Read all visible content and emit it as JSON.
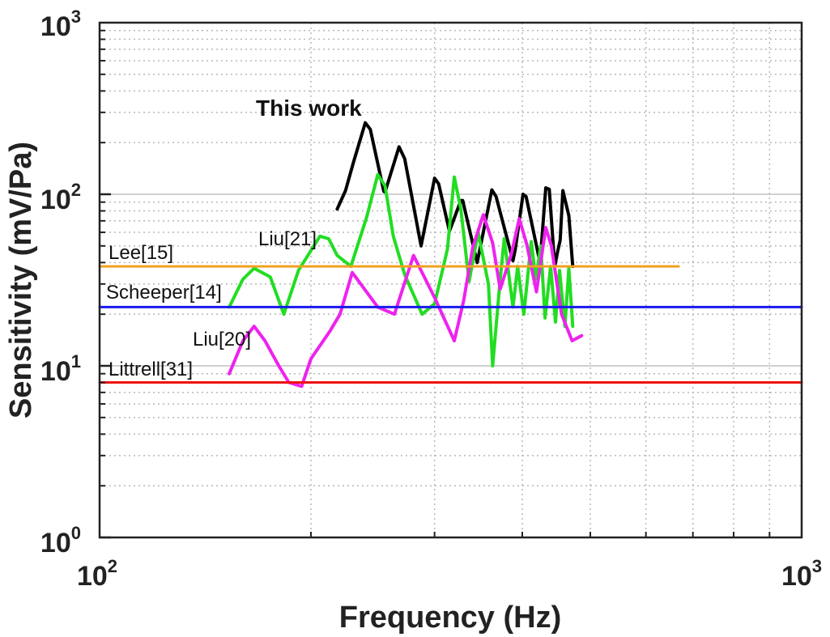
{
  "chart_data": {
    "type": "line",
    "xscale": "log",
    "yscale": "log",
    "xlabel": "Frequency (Hz)",
    "ylabel": "Sensitivity (mV/Pa)",
    "xlim": [
      100,
      1000
    ],
    "ylim": [
      1,
      1000
    ],
    "grid": true,
    "x_ticks": [
      {
        "base": "10",
        "exp": "2"
      },
      {
        "base": "10",
        "exp": "3"
      }
    ],
    "y_ticks": [
      {
        "base": "10",
        "exp": "0"
      },
      {
        "base": "10",
        "exp": "1"
      },
      {
        "base": "10",
        "exp": "2"
      },
      {
        "base": "10",
        "exp": "3"
      }
    ],
    "annotations": [
      {
        "text": "This work",
        "bold": true
      },
      {
        "text": "Liu[21]"
      },
      {
        "text": "Lee[15]"
      },
      {
        "text": "Scheeper[14]"
      },
      {
        "text": "Liu[20]"
      },
      {
        "text": "Littrell[31]"
      }
    ],
    "series": [
      {
        "name": "This work",
        "color": "#000000",
        "x": [
          218,
          224,
          230,
          239,
          243,
          254,
          255,
          267,
          272,
          287,
          300,
          304,
          315,
          319,
          327,
          329,
          345,
          362,
          367,
          388,
          391,
          401,
          405,
          424,
          432,
          437,
          445,
          449,
          453,
          457,
          466,
          472
        ],
        "y": [
          82,
          105,
          154,
          261,
          239,
          104,
          103,
          189,
          161,
          50,
          124,
          115,
          61,
          70,
          92,
          92,
          40,
          106,
          97,
          41,
          48,
          100,
          97,
          40,
          109,
          107,
          38,
          46,
          54,
          105,
          75,
          38
        ]
      },
      {
        "name": "Liu[21]",
        "color": "#22dd22",
        "x": [
          153,
          160,
          166,
          175,
          183,
          192,
          206,
          212,
          218,
          228,
          240,
          249,
          255,
          262,
          272,
          288,
          300,
          313,
          320,
          327,
          336,
          346,
          358,
          363,
          372,
          377,
          388,
          394,
          402,
          412,
          418,
          425,
          431,
          439,
          446,
          452,
          460,
          466,
          472
        ],
        "y": [
          22,
          32,
          37,
          33,
          20,
          36,
          57,
          55,
          44,
          38,
          73,
          130,
          112,
          57,
          34,
          20,
          23,
          48,
          126,
          82,
          31,
          60,
          30,
          10,
          32,
          55,
          22,
          38,
          20,
          53,
          32,
          50,
          19,
          38,
          18,
          36,
          17,
          37,
          17
        ]
      },
      {
        "name": "Liu[20]",
        "color": "#ee22ee",
        "x": [
          153,
          160,
          166,
          172,
          180,
          186,
          194,
          200,
          213,
          220,
          229,
          240,
          249,
          263,
          280,
          300,
          320,
          330,
          340,
          352,
          363,
          372,
          386,
          396,
          406,
          419,
          432,
          440,
          455,
          471,
          486
        ],
        "y": [
          9,
          14,
          17,
          14,
          10,
          8,
          7.6,
          11,
          16,
          20,
          35,
          27,
          22,
          20,
          44,
          25,
          14,
          24,
          49,
          76,
          52,
          28,
          45,
          72,
          51,
          27,
          64,
          50,
          20,
          14,
          15
        ]
      },
      {
        "name": "Lee[15]",
        "color": "#f0a020",
        "x": [
          100,
          668
        ],
        "y": [
          38,
          38
        ]
      },
      {
        "name": "Scheeper[14]",
        "color": "#1a1aee",
        "x": [
          100,
          1000
        ],
        "y": [
          22,
          22
        ]
      },
      {
        "name": "Littrell[31]",
        "color": "#ee1111",
        "x": [
          100,
          1000
        ],
        "y": [
          8,
          8
        ]
      }
    ]
  }
}
